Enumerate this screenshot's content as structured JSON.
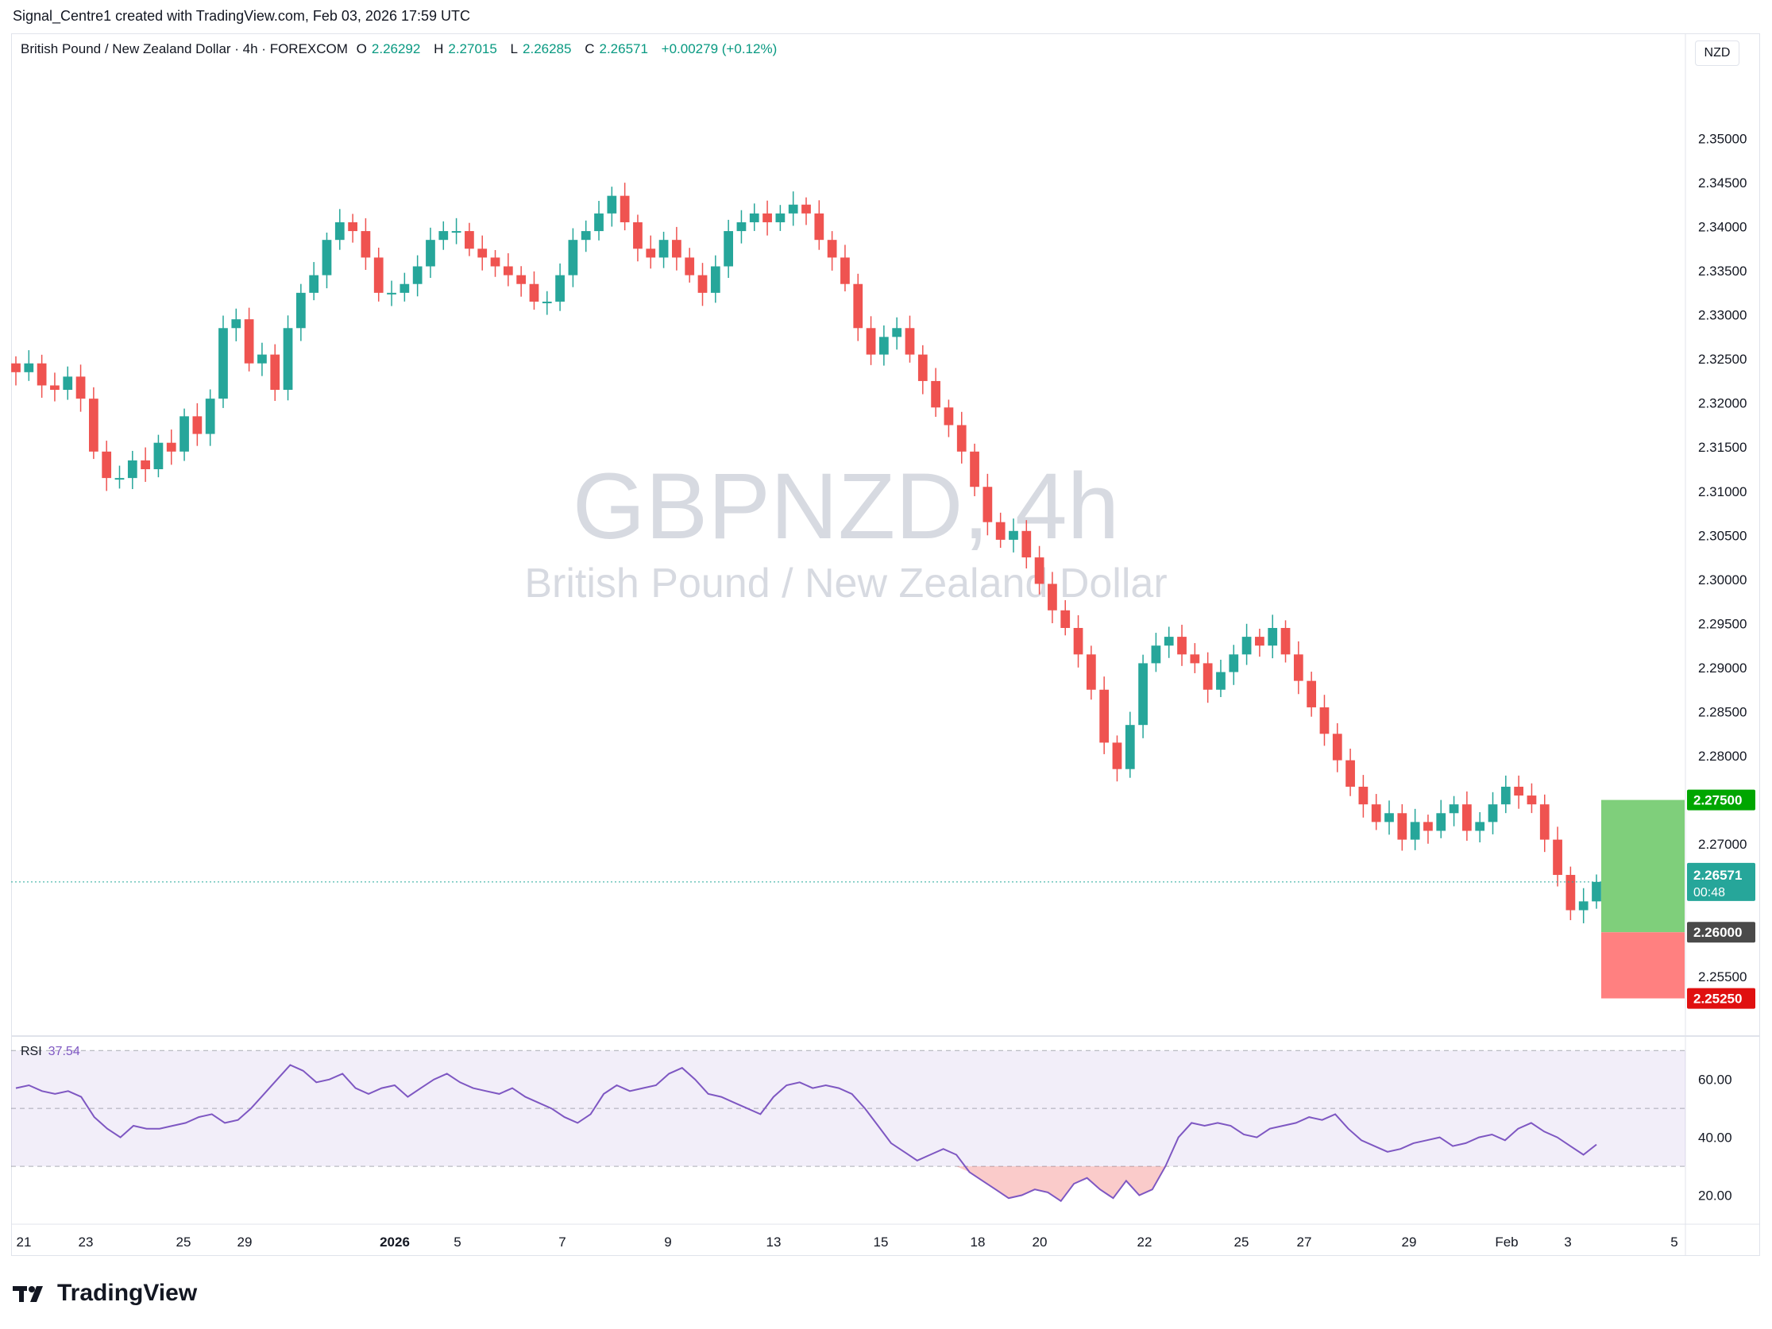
{
  "caption": "Signal_Centre1 created with TradingView.com, Feb 03, 2026 17:59 UTC",
  "legend": {
    "title": "British Pound / New Zealand Dollar · 4h · FOREXCOM",
    "o_label": "O",
    "o_value": "2.26292",
    "h_label": "H",
    "h_value": "2.27015",
    "l_label": "L",
    "l_value": "2.26285",
    "c_label": "C",
    "c_value": "2.26571",
    "change": "+0.00279 (+0.12%)"
  },
  "watermark": {
    "symbol": "GBPNZD, 4h",
    "name": "British Pound / New Zealand Dollar"
  },
  "currency_button": "NZD",
  "rsi": {
    "label": "RSI",
    "value": "37.54"
  },
  "brand": "TradingView",
  "colors": {
    "up": "#26a69a",
    "down": "#ef5350",
    "rsi_line": "#7e57c2",
    "profit": "#7fcf7b",
    "loss": "#ff8080"
  },
  "chart_data": {
    "type": "candlestick",
    "symbol": "GBPNZD",
    "timeframe": "4h",
    "price_axis": {
      "ticks": [
        "2.35000",
        "2.34500",
        "2.34000",
        "2.33500",
        "2.33000",
        "2.32500",
        "2.32000",
        "2.31500",
        "2.31000",
        "2.30500",
        "2.30000",
        "2.29500",
        "2.29000",
        "2.28500",
        "2.28000",
        "2.27000",
        "2.25500"
      ],
      "range": [
        2.2485,
        2.3585
      ]
    },
    "time_axis": [
      "21",
      "23",
      "25",
      "29",
      "2026",
      "5",
      "7",
      "9",
      "13",
      "15",
      "18",
      "20",
      "22",
      "25",
      "27",
      "29",
      "Feb",
      "3",
      "5"
    ],
    "close_path": [
      2.3235,
      2.3245,
      2.322,
      2.3215,
      2.323,
      2.3205,
      2.3145,
      2.3115,
      2.3115,
      2.3135,
      2.3125,
      2.3155,
      2.3145,
      2.3185,
      2.3165,
      2.3205,
      2.3285,
      2.3295,
      2.3245,
      2.3255,
      2.3215,
      2.3285,
      2.3325,
      2.3345,
      2.3385,
      2.3405,
      2.3395,
      2.3365,
      2.3325,
      2.3325,
      2.3335,
      2.3355,
      2.3385,
      2.3395,
      2.3395,
      2.3375,
      2.3365,
      2.3355,
      2.3345,
      2.3335,
      2.3315,
      2.3315,
      2.3345,
      2.3385,
      2.3395,
      2.3415,
      2.3435,
      2.3405,
      2.3375,
      2.3365,
      2.3385,
      2.3365,
      2.3345,
      2.3325,
      2.3355,
      2.3395,
      2.3405,
      2.3415,
      2.3405,
      2.3415,
      2.3425,
      2.3415,
      2.3385,
      2.3365,
      2.3335,
      2.3285,
      2.3255,
      2.3275,
      2.3285,
      2.3255,
      2.3225,
      2.3195,
      2.3175,
      2.3145,
      2.3105,
      2.3065,
      2.3045,
      2.3055,
      2.3025,
      2.2995,
      2.2965,
      2.2945,
      2.2915,
      2.2875,
      2.2815,
      2.2785,
      2.2835,
      2.2905,
      2.2925,
      2.2935,
      2.2915,
      2.2905,
      2.2875,
      2.2895,
      2.2915,
      2.2935,
      2.2925,
      2.2945,
      2.2915,
      2.2885,
      2.2855,
      2.2825,
      2.2795,
      2.2765,
      2.2745,
      2.2725,
      2.2735,
      2.2705,
      2.2725,
      2.2715,
      2.2735,
      2.2745,
      2.2715,
      2.2725,
      2.2745,
      2.2765,
      2.2755,
      2.2745,
      2.2705,
      2.2665,
      2.2625,
      2.2635,
      2.26571
    ],
    "last_price": "2.26571",
    "countdown": "00:48",
    "position": {
      "target": "2.27500",
      "entry": "2.26000",
      "stop": "2.25250"
    },
    "rsi_series": [
      57,
      58,
      56,
      55,
      56,
      54,
      47,
      43,
      40,
      44,
      43,
      43,
      44,
      45,
      47,
      48,
      45,
      46,
      50,
      55,
      60,
      65,
      63,
      59,
      60,
      62,
      57,
      55,
      57,
      58,
      54,
      57,
      60,
      62,
      59,
      57,
      56,
      55,
      57,
      54,
      52,
      50,
      47,
      45,
      48,
      55,
      58,
      56,
      57,
      58,
      62,
      64,
      60,
      55,
      54,
      52,
      50,
      48,
      54,
      58,
      59,
      57,
      58,
      57,
      55,
      50,
      44,
      38,
      35,
      32,
      34,
      36,
      34,
      28,
      25,
      22,
      19,
      20,
      22,
      21,
      18,
      24,
      26,
      22,
      19,
      25,
      20,
      22,
      30,
      40,
      45,
      44,
      45,
      44,
      41,
      40,
      43,
      44,
      45,
      47,
      46,
      48,
      43,
      39,
      37,
      35,
      36,
      38,
      39,
      40,
      37,
      38,
      40,
      41,
      39,
      43,
      45,
      42,
      40,
      37,
      34,
      37.54
    ],
    "rsi_axis": {
      "ticks": [
        "60.00",
        "40.00",
        "20.00"
      ],
      "range": [
        10,
        75
      ],
      "upper_band": 70,
      "middle": 50,
      "lower_band": 30
    }
  }
}
